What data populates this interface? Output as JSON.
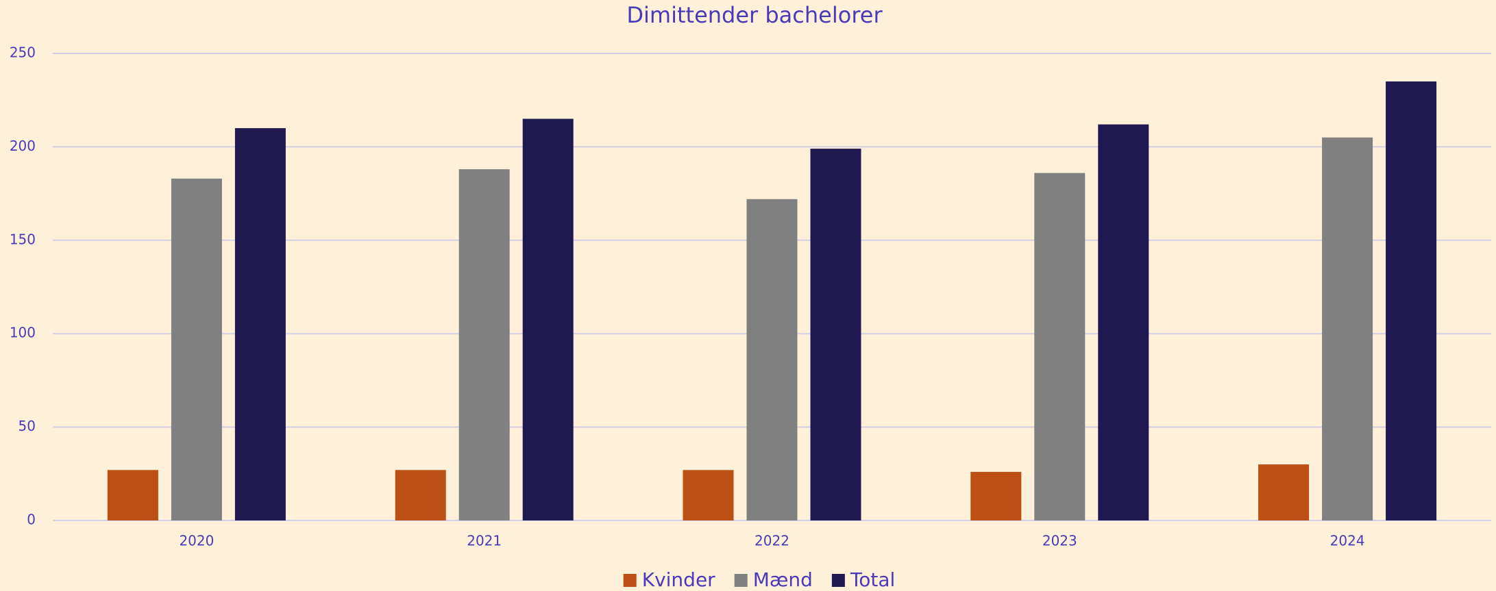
{
  "chart_data": {
    "type": "bar",
    "title": "Dimittender bachelorer",
    "categories": [
      "2020",
      "2021",
      "2022",
      "2023",
      "2024"
    ],
    "series": [
      {
        "name": "Kvinder",
        "color": "#bc5014",
        "values": [
          27,
          27,
          27,
          26,
          30
        ]
      },
      {
        "name": "Mænd",
        "color": "#808080",
        "values": [
          183,
          188,
          172,
          186,
          205
        ]
      },
      {
        "name": "Total",
        "color": "#201851",
        "values": [
          210,
          215,
          199,
          212,
          235
        ]
      }
    ],
    "ylim": [
      0,
      250
    ],
    "yticks": [
      0,
      50,
      100,
      150,
      200,
      250
    ],
    "grid": true,
    "legend": "bottom"
  }
}
